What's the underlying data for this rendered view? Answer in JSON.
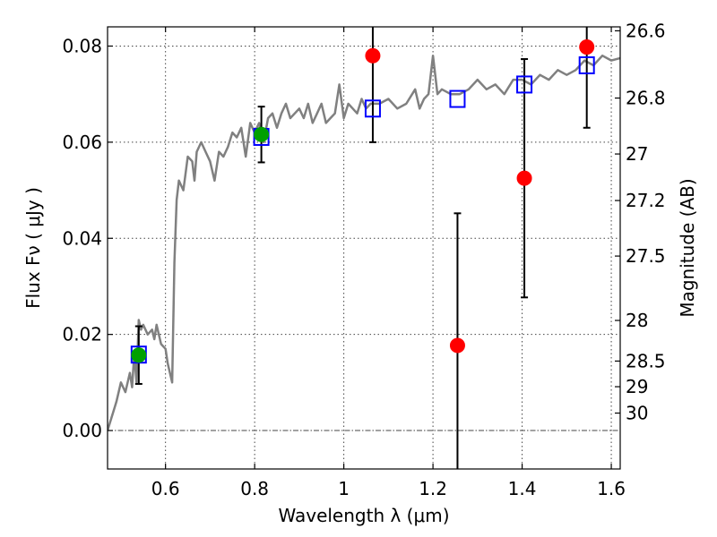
{
  "chart_data": {
    "type": "scatter",
    "xlabel": "Wavelength  λ (μm)",
    "ylabel": "Flux  Fν  ( μJy )",
    "ylabel_right": "Magnitude (AB)",
    "xlim": [
      0.47,
      1.62
    ],
    "ylim": [
      -0.008,
      0.084
    ],
    "x_ticks": [
      0.6,
      0.8,
      1.0,
      1.2,
      1.4,
      1.6
    ],
    "x_tick_labels": [
      "0.6",
      "0.8",
      "1",
      "1.2",
      "1.4",
      "1.6"
    ],
    "y_ticks": [
      0.0,
      0.02,
      0.04,
      0.06,
      0.08
    ],
    "y_tick_labels": [
      "0.00",
      "0.02",
      "0.04",
      "0.06",
      "0.08"
    ],
    "right_ticks": [
      {
        "label": "26.6",
        "value": 26.6
      },
      {
        "label": "26.8",
        "value": 26.8
      },
      {
        "label": "27",
        "value": 27.0
      },
      {
        "label": "27.2",
        "value": 27.2
      },
      {
        "label": "27.5",
        "value": 27.5
      },
      {
        "label": "28",
        "value": 28.0
      },
      {
        "label": "28.5",
        "value": 28.5
      },
      {
        "label": "29",
        "value": 29.0
      },
      {
        "label": "30",
        "value": 30.0
      }
    ],
    "grid": true,
    "spectrum": {
      "color": "#808080",
      "x": [
        0.47,
        0.49,
        0.5,
        0.51,
        0.52,
        0.525,
        0.53,
        0.535,
        0.54,
        0.545,
        0.55,
        0.56,
        0.57,
        0.575,
        0.58,
        0.59,
        0.6,
        0.605,
        0.61,
        0.615,
        0.62,
        0.625,
        0.63,
        0.64,
        0.65,
        0.66,
        0.665,
        0.67,
        0.68,
        0.69,
        0.7,
        0.71,
        0.72,
        0.73,
        0.74,
        0.75,
        0.76,
        0.77,
        0.78,
        0.79,
        0.8,
        0.81,
        0.82,
        0.83,
        0.84,
        0.85,
        0.86,
        0.87,
        0.88,
        0.89,
        0.9,
        0.91,
        0.92,
        0.93,
        0.94,
        0.95,
        0.96,
        0.97,
        0.98,
        0.99,
        1.0,
        1.01,
        1.02,
        1.03,
        1.04,
        1.05,
        1.06,
        1.08,
        1.1,
        1.12,
        1.14,
        1.16,
        1.17,
        1.18,
        1.19,
        1.2,
        1.21,
        1.22,
        1.24,
        1.26,
        1.28,
        1.3,
        1.32,
        1.34,
        1.36,
        1.38,
        1.4,
        1.42,
        1.44,
        1.46,
        1.48,
        1.5,
        1.52,
        1.54,
        1.56,
        1.58,
        1.6,
        1.62
      ],
      "y": [
        0.0,
        0.006,
        0.01,
        0.008,
        0.012,
        0.009,
        0.016,
        0.01,
        0.023,
        0.021,
        0.022,
        0.02,
        0.021,
        0.019,
        0.022,
        0.018,
        0.017,
        0.014,
        0.012,
        0.01,
        0.035,
        0.048,
        0.052,
        0.05,
        0.057,
        0.056,
        0.052,
        0.058,
        0.06,
        0.058,
        0.056,
        0.052,
        0.058,
        0.057,
        0.059,
        0.062,
        0.061,
        0.063,
        0.057,
        0.064,
        0.062,
        0.064,
        0.06,
        0.065,
        0.066,
        0.063,
        0.066,
        0.068,
        0.065,
        0.066,
        0.067,
        0.065,
        0.068,
        0.064,
        0.066,
        0.068,
        0.064,
        0.065,
        0.066,
        0.072,
        0.065,
        0.068,
        0.067,
        0.066,
        0.069,
        0.067,
        0.068,
        0.068,
        0.069,
        0.067,
        0.068,
        0.071,
        0.067,
        0.069,
        0.07,
        0.078,
        0.07,
        0.071,
        0.07,
        0.07,
        0.071,
        0.073,
        0.071,
        0.072,
        0.07,
        0.073,
        0.073,
        0.072,
        0.074,
        0.073,
        0.075,
        0.074,
        0.075,
        0.077,
        0.076,
        0.078,
        0.077,
        0.0775
      ]
    },
    "model_points": {
      "color": "#0000ff",
      "marker": "square-open",
      "x": [
        0.54,
        0.815,
        1.065,
        1.255,
        1.405,
        1.545
      ],
      "y": [
        0.0158,
        0.0611,
        0.067,
        0.069,
        0.072,
        0.076
      ]
    },
    "observed_detections": {
      "color": "#00a000",
      "marker": "circle",
      "x": [
        0.54,
        0.815
      ],
      "y": [
        0.0157,
        0.0616
      ],
      "err": [
        0.006,
        0.0058
      ]
    },
    "observed_other": {
      "color": "#ff0000",
      "marker": "circle",
      "x": [
        1.065,
        1.255,
        1.405,
        1.545
      ],
      "y": [
        0.078,
        0.0177,
        0.0525,
        0.0798
      ],
      "err": [
        0.018,
        0.0275,
        0.0248,
        0.0168
      ]
    }
  }
}
